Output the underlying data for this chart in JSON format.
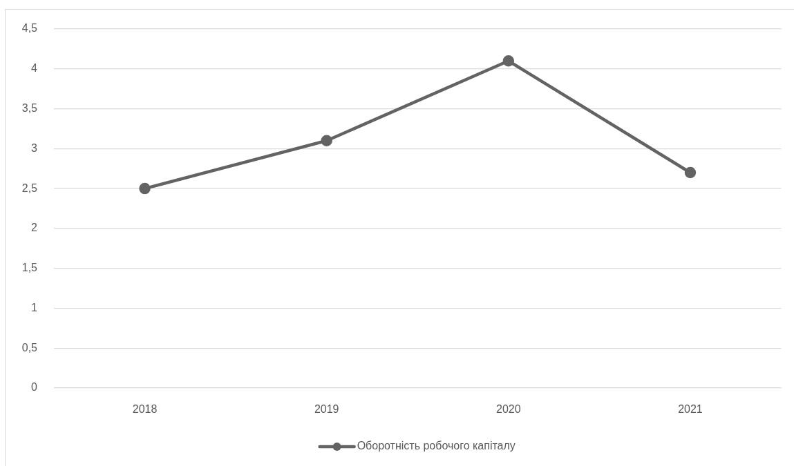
{
  "chart_data": {
    "type": "line",
    "categories": [
      "2018",
      "2019",
      "2020",
      "2021"
    ],
    "series": [
      {
        "name": "Оборотність робочого капіталу",
        "color": "#636363",
        "values": [
          2.5,
          3.1,
          4.1,
          2.7
        ]
      }
    ],
    "ylim": [
      0,
      4.5
    ],
    "yticks": [
      0,
      {
        "value": 0.5,
        "label": "0,5"
      },
      1,
      {
        "value": 1.5,
        "label": "1,5"
      },
      2,
      {
        "value": 2.5,
        "label": "2,5"
      },
      3,
      {
        "value": 3.5,
        "label": "3,5"
      },
      4,
      {
        "value": 4.5,
        "label": "4,5"
      }
    ],
    "grid": "y",
    "legend": "bottom",
    "marker": "circle",
    "line_style": "solid"
  }
}
